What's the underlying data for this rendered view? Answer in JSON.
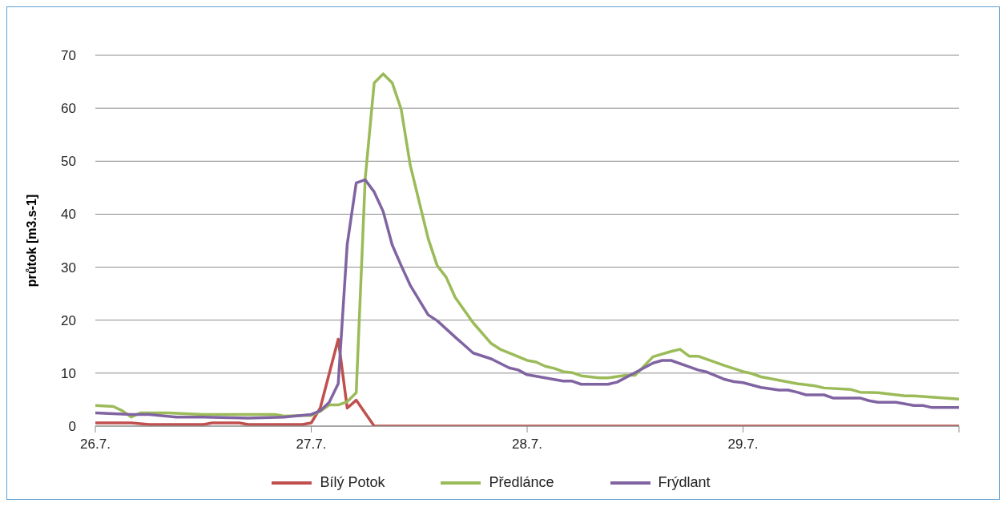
{
  "chart_data": {
    "type": "line",
    "ylabel": "průtok [m3.s-1]",
    "xlim": [
      "--07-26",
      "--07-30"
    ],
    "xticks": [
      {
        "value": "--07-26",
        "label": "26.7."
      },
      {
        "value": "--07-27",
        "label": "27.7."
      },
      {
        "value": "--07-28",
        "label": "28.7."
      },
      {
        "value": "--07-29",
        "label": "29.7."
      },
      {
        "value": "--07-30",
        "label": null
      }
    ],
    "ylim": [
      0,
      70
    ],
    "yticks": [
      0,
      10,
      20,
      30,
      40,
      50,
      60,
      70
    ],
    "grid": "y",
    "legend": "bottom",
    "marker": "none",
    "line_style": "solid",
    "series": [
      {
        "name": "Bílý Potok",
        "color": "#c0504d",
        "x": [
          "--07-26T00:00",
          "--07-26T04:00",
          "--07-26T06:00",
          "--07-26T12:00",
          "--07-26T13:00",
          "--07-26T16:00",
          "--07-26T17:00",
          "--07-26T23:00",
          "--07-27T00:00",
          "--07-27T01:00",
          "--07-27T03:00",
          "--07-27T04:00",
          "--07-27T05:00",
          "--07-27T07:00",
          "--07-30T00:00"
        ],
        "values": [
          0.6,
          0.6,
          0.3,
          0.3,
          0.6,
          0.6,
          0.3,
          0.3,
          0.6,
          3.4,
          16.4,
          3.4,
          4.9,
          0,
          0
        ]
      },
      {
        "name": "Předlánce",
        "color": "#9bbb59",
        "x": [
          "--07-26T00:00",
          "--07-26T02:00",
          "--07-26T03:00",
          "--07-26T04:00",
          "--07-26T05:00",
          "--07-26T08:00",
          "--07-26T12:00",
          "--07-26T20:00",
          "--07-26T21:00",
          "--07-26T23:00",
          "--07-27T00:00",
          "--07-27T01:00",
          "--07-27T02:00",
          "--07-27T03:00",
          "--07-27T04:00",
          "--07-27T05:00",
          "--07-27T06:00",
          "--07-27T07:00",
          "--07-27T08:00",
          "--07-27T09:00",
          "--07-27T10:00",
          "--07-27T11:00",
          "--07-27T13:00",
          "--07-27T14:00",
          "--07-27T15:00",
          "--07-27T16:00",
          "--07-27T18:00",
          "--07-27T20:00",
          "--07-27T21:00",
          "--07-27T22:00",
          "--07-28T00:00",
          "--07-28T01:00",
          "--07-28T02:00",
          "--07-28T03:00",
          "--07-28T04:00",
          "--07-28T05:00",
          "--07-28T06:00",
          "--07-28T08:00",
          "--07-28T09:00",
          "--07-28T11:00",
          "--07-28T12:00",
          "--07-28T14:00",
          "--07-28T16:00",
          "--07-28T17:00",
          "--07-28T18:00",
          "--07-28T19:00",
          "--07-28T20:00",
          "--07-28T22:00",
          "--07-29T00:00",
          "--07-29T01:00",
          "--07-29T02:00",
          "--07-29T06:00",
          "--07-29T08:00",
          "--07-29T09:00",
          "--07-29T12:00",
          "--07-29T13:00",
          "--07-29T15:00",
          "--07-29T18:00",
          "--07-29T19:00",
          "--07-30T00:00"
        ],
        "values": [
          3.9,
          3.7,
          2.9,
          1.7,
          2.5,
          2.5,
          2.2,
          2.2,
          1.9,
          2.0,
          2.0,
          2.8,
          4.0,
          4.0,
          4.6,
          6.3,
          46.7,
          64.8,
          66.5,
          64.8,
          59.8,
          49.3,
          35.4,
          30.3,
          28.1,
          24.3,
          19.5,
          15.6,
          14.5,
          13.8,
          12.4,
          12.1,
          11.3,
          10.9,
          10.3,
          10.1,
          9.5,
          9.1,
          9.1,
          9.6,
          9.6,
          13.1,
          14.1,
          14.5,
          13.2,
          13.2,
          12.6,
          11.4,
          10.3,
          9.9,
          9.3,
          8.0,
          7.6,
          7.2,
          6.9,
          6.4,
          6.3,
          5.7,
          5.7,
          5.1
        ]
      },
      {
        "name": "Frýdlant",
        "color": "#8064a2",
        "x": [
          "--07-26T00:00",
          "--07-26T04:00",
          "--07-26T06:00",
          "--07-26T09:00",
          "--07-26T12:00",
          "--07-26T17:00",
          "--07-26T21:00",
          "--07-27T00:00",
          "--07-27T01:00",
          "--07-27T02:00",
          "--07-27T03:00",
          "--07-27T04:00",
          "--07-27T05:00",
          "--07-27T06:00",
          "--07-27T07:00",
          "--07-27T08:00",
          "--07-27T09:00",
          "--07-27T10:00",
          "--07-27T11:00",
          "--07-27T13:00",
          "--07-27T14:00",
          "--07-27T16:00",
          "--07-27T17:00",
          "--07-27T18:00",
          "--07-27T20:00",
          "--07-27T22:00",
          "--07-27T23:00",
          "--07-28T00:00",
          "--07-28T04:00",
          "--07-28T05:00",
          "--07-28T06:00",
          "--07-28T09:00",
          "--07-28T10:00",
          "--07-28T12:00",
          "--07-28T14:00",
          "--07-28T15:00",
          "--07-28T16:00",
          "--07-28T19:00",
          "--07-28T20:00",
          "--07-28T22:00",
          "--07-28T23:00",
          "--07-29T00:00",
          "--07-29T02:00",
          "--07-29T04:00",
          "--07-29T05:00",
          "--07-29T06:00",
          "--07-29T07:00",
          "--07-29T09:00",
          "--07-29T10:00",
          "--07-29T13:00",
          "--07-29T14:00",
          "--07-29T15:00",
          "--07-29T17:00",
          "--07-29T19:00",
          "--07-29T20:00",
          "--07-29T21:00",
          "--07-30T00:00"
        ],
        "values": [
          2.5,
          2.2,
          2.2,
          1.7,
          1.7,
          1.5,
          1.7,
          2.2,
          2.9,
          4.5,
          8.0,
          34.3,
          45.9,
          46.5,
          44.2,
          40.5,
          34.2,
          30.3,
          26.6,
          21.0,
          19.9,
          16.8,
          15.3,
          13.8,
          12.7,
          11.0,
          10.6,
          9.7,
          8.5,
          8.5,
          7.9,
          7.9,
          8.3,
          10.1,
          11.9,
          12.4,
          12.4,
          10.6,
          10.2,
          8.8,
          8.4,
          8.2,
          7.3,
          6.8,
          6.8,
          6.4,
          5.9,
          5.9,
          5.3,
          5.3,
          4.8,
          4.5,
          4.5,
          3.9,
          3.9,
          3.5,
          3.5
        ]
      }
    ]
  }
}
